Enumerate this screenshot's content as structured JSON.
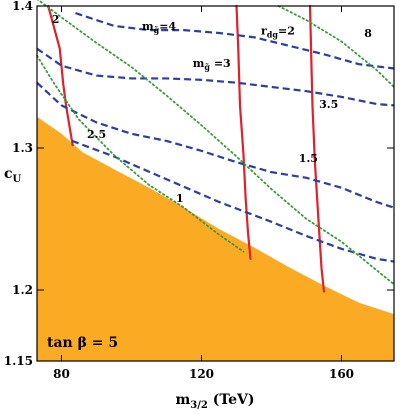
{
  "chart_data": {
    "type": "line",
    "title": "",
    "xlabel": {
      "base": "m",
      "sub": "3/2",
      "suffix": " (TeV)"
    },
    "ylabel": {
      "base": "c",
      "sub": "U"
    },
    "xlim": [
      73,
      175
    ],
    "ylim": [
      1.15,
      1.4
    ],
    "xticks": [
      80,
      120,
      160
    ],
    "yticks": [
      1.15,
      1.2,
      1.3,
      1.4
    ],
    "xtick_labels": [
      "80",
      "120",
      "160"
    ],
    "ytick_labels": [
      "1.15",
      "1.2",
      "1.3",
      "1.4"
    ],
    "overlay_text": "tan β = 5",
    "excluded_region_color": "#FBAA23",
    "excluded_boundary": {
      "x": [
        73,
        80,
        86,
        95,
        105,
        115,
        125,
        135,
        145,
        155,
        165,
        175
      ],
      "y": [
        1.322,
        1.31,
        1.297,
        1.285,
        1.272,
        1.258,
        1.243,
        1.23,
        1.216,
        1.203,
        1.191,
        1.183
      ]
    },
    "series": [
      {
        "group": "red-solid",
        "label": "2",
        "color": "#E0202A",
        "style": "solid",
        "x": [
          76.2,
          79.5,
          80.5,
          81.3,
          82.3,
          83.2
        ],
        "y": [
          1.4,
          1.37,
          1.345,
          1.33,
          1.315,
          1.302
        ]
      },
      {
        "group": "red-solid",
        "label": "3",
        "color": "#E0202A",
        "style": "solid",
        "x": [
          130.0,
          130.5,
          131.0,
          132.0,
          132.6,
          133.3,
          134.0
        ],
        "y": [
          1.4,
          1.37,
          1.33,
          1.295,
          1.265,
          1.24,
          1.222
        ]
      },
      {
        "group": "red-solid",
        "label": "3.5",
        "color": "#E0202A",
        "style": "solid",
        "x": [
          151.0,
          151.4,
          151.7,
          152.4,
          153.4,
          154.3,
          155.0
        ],
        "y": [
          1.4,
          1.36,
          1.33,
          1.29,
          1.25,
          1.215,
          1.199
        ]
      },
      {
        "group": "blue-dashed",
        "label": "1",
        "color": "#2A3FA0",
        "style": "dashed",
        "x": [
          83,
          95,
          110,
          125,
          140,
          150,
          160,
          170,
          175
        ],
        "y": [
          1.305,
          1.294,
          1.278,
          1.262,
          1.248,
          1.238,
          1.229,
          1.222,
          1.22
        ]
      },
      {
        "group": "blue-dashed",
        "label": "1.5",
        "color": "#2A3FA0",
        "style": "dashed",
        "x": [
          73,
          80,
          90,
          100,
          110,
          120,
          130,
          140,
          150,
          160,
          170,
          175
        ],
        "y": [
          1.346,
          1.33,
          1.318,
          1.31,
          1.305,
          1.298,
          1.29,
          1.283,
          1.279,
          1.272,
          1.262,
          1.258
        ]
      },
      {
        "group": "blue-dashed",
        "label": "m_g̃ = 3",
        "color": "#2A3FA0",
        "style": "dashed",
        "x": [
          73,
          80,
          90,
          100,
          110,
          120,
          130,
          140,
          150,
          160,
          170,
          175
        ],
        "y": [
          1.37,
          1.358,
          1.351,
          1.349,
          1.349,
          1.348,
          1.346,
          1.343,
          1.34,
          1.336,
          1.331,
          1.33
        ]
      },
      {
        "group": "blue-dashed",
        "label": "r_dg = 2",
        "color": "#2A3FA0",
        "style": "dashed",
        "x": [
          84,
          95,
          105,
          115,
          125,
          135,
          145,
          155,
          165,
          175
        ],
        "y": [
          1.395,
          1.386,
          1.383,
          1.383,
          1.381,
          1.378,
          1.372,
          1.366,
          1.359,
          1.356
        ]
      },
      {
        "group": "green-dotted",
        "label": "m_g̃ = 4",
        "color": "#3E9A3A",
        "style": "dotted",
        "x": [
          73,
          80,
          90,
          100,
          110,
          120,
          130,
          140,
          150,
          160,
          170,
          175
        ],
        "y": [
          1.405,
          1.392,
          1.374,
          1.357,
          1.337,
          1.316,
          1.294,
          1.271,
          1.25,
          1.234,
          1.214,
          1.204
        ]
      },
      {
        "group": "green-dotted",
        "label": "2.5",
        "color": "#3E9A3A",
        "style": "dotted",
        "x": [
          73,
          78,
          85,
          95,
          105,
          115,
          125,
          132
        ],
        "y": [
          1.365,
          1.345,
          1.32,
          1.295,
          1.274,
          1.258,
          1.239,
          1.227
        ]
      },
      {
        "group": "green-dotted",
        "label": "8",
        "color": "#3E9A3A",
        "style": "dotted",
        "x": [
          142,
          150,
          160,
          170,
          175
        ],
        "y": [
          1.4,
          1.39,
          1.375,
          1.355,
          1.343
        ]
      }
    ],
    "annotations": [
      {
        "text": "2",
        "x": 77.2,
        "y": 1.388
      },
      {
        "text": "m",
        "sub": "g̃",
        "suffix": "=4",
        "x": 103,
        "y": 1.383
      },
      {
        "text": "r",
        "sub": "dg",
        "suffix": "=2",
        "x": 137,
        "y": 1.38
      },
      {
        "text": "8",
        "x": 166.5,
        "y": 1.378
      },
      {
        "text": "m",
        "sub": "g̃",
        "suffix": " =3",
        "x": 117.5,
        "y": 1.357
      },
      {
        "text": "3.5",
        "x": 153.6,
        "y": 1.328
      },
      {
        "text": "2.5",
        "x": 87.3,
        "y": 1.307
      },
      {
        "text": "1.5",
        "x": 147.8,
        "y": 1.29
      },
      {
        "text": "1",
        "x": 112.7,
        "y": 1.262
      }
    ]
  }
}
